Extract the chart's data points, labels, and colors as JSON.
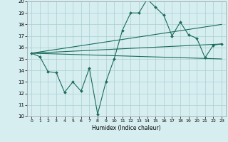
{
  "xlabel": "Humidex (Indice chaleur)",
  "bg_color": "#d6eef0",
  "grid_color": "#aacdd2",
  "line_color": "#1a6b5a",
  "xlim": [
    -0.5,
    23.5
  ],
  "ylim": [
    10,
    20
  ],
  "xticks": [
    0,
    1,
    2,
    3,
    4,
    5,
    6,
    7,
    8,
    9,
    10,
    11,
    12,
    13,
    14,
    15,
    16,
    17,
    18,
    19,
    20,
    21,
    22,
    23
  ],
  "yticks": [
    10,
    11,
    12,
    13,
    14,
    15,
    16,
    17,
    18,
    19,
    20
  ],
  "series1_x": [
    0,
    1,
    2,
    3,
    4,
    5,
    6,
    7,
    8,
    9,
    10,
    11,
    12,
    13,
    14,
    15,
    16,
    17,
    18,
    19,
    20,
    21,
    22,
    23
  ],
  "series1_y": [
    15.5,
    15.2,
    13.9,
    13.8,
    12.1,
    13.0,
    12.2,
    14.2,
    10.2,
    13.0,
    15.0,
    17.5,
    19.0,
    19.0,
    20.2,
    19.5,
    18.8,
    17.0,
    18.2,
    17.1,
    16.8,
    15.1,
    16.2,
    16.3
  ],
  "series2_x": [
    0,
    23
  ],
  "series2_y": [
    15.5,
    16.3
  ],
  "series3_x": [
    0,
    23
  ],
  "series3_y": [
    15.5,
    18.0
  ],
  "series4_x": [
    0,
    23
  ],
  "series4_y": [
    15.5,
    15.0
  ]
}
